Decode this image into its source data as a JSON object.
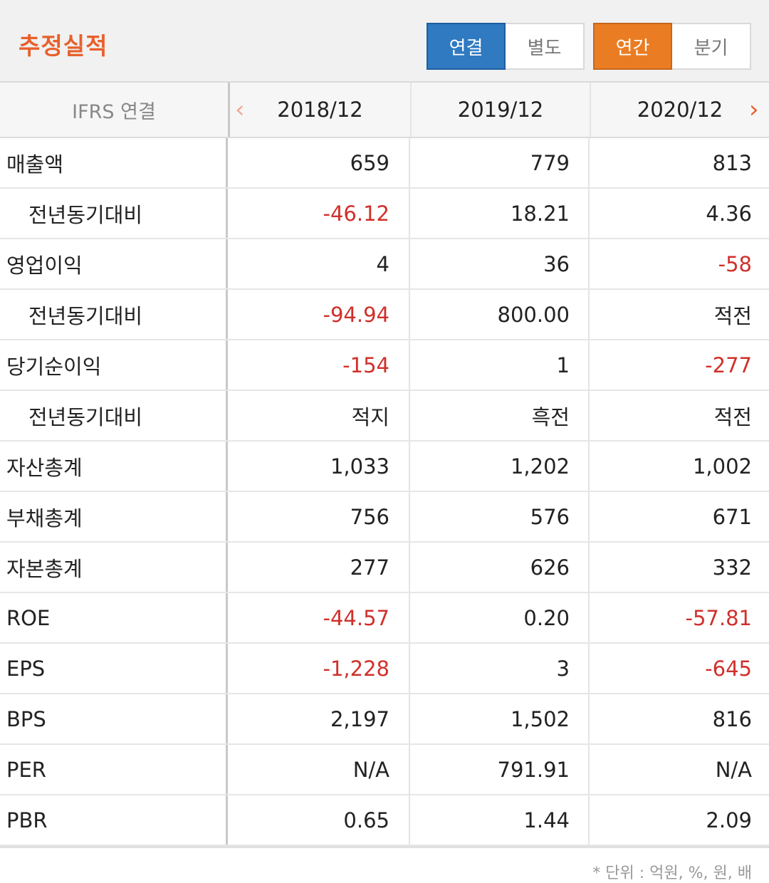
{
  "header": {
    "title": "추정실적",
    "consolidation_toggle": [
      "연결",
      "별도"
    ],
    "period_toggle": [
      "연간",
      "분기"
    ],
    "colors": {
      "title": "#e8602c",
      "blue_active": "#2f7ac1",
      "orange_active": "#ea7d23",
      "negative": "#d0302b"
    }
  },
  "table": {
    "corner_label": "IFRS 연결",
    "years": [
      "2018/12",
      "2019/12",
      "2020/12"
    ],
    "prev_icon": "chevron-left-icon",
    "next_icon": "chevron-right-icon",
    "rows": [
      {
        "label": "매출액",
        "sub": false,
        "values": [
          "659",
          "779",
          "813"
        ],
        "negative": [
          false,
          false,
          false
        ]
      },
      {
        "label": "전년동기대비",
        "sub": true,
        "values": [
          "-46.12",
          "18.21",
          "4.36"
        ],
        "negative": [
          true,
          false,
          false
        ]
      },
      {
        "label": "영업이익",
        "sub": false,
        "values": [
          "4",
          "36",
          "-58"
        ],
        "negative": [
          false,
          false,
          true
        ]
      },
      {
        "label": "전년동기대비",
        "sub": true,
        "values": [
          "-94.94",
          "800.00",
          "적전"
        ],
        "negative": [
          true,
          false,
          false
        ]
      },
      {
        "label": "당기순이익",
        "sub": false,
        "values": [
          "-154",
          "1",
          "-277"
        ],
        "negative": [
          true,
          false,
          true
        ]
      },
      {
        "label": "전년동기대비",
        "sub": true,
        "values": [
          "적지",
          "흑전",
          "적전"
        ],
        "negative": [
          false,
          false,
          false
        ]
      },
      {
        "label": "자산총계",
        "sub": false,
        "values": [
          "1,033",
          "1,202",
          "1,002"
        ],
        "negative": [
          false,
          false,
          false
        ]
      },
      {
        "label": "부채총계",
        "sub": false,
        "values": [
          "756",
          "576",
          "671"
        ],
        "negative": [
          false,
          false,
          false
        ]
      },
      {
        "label": "자본총계",
        "sub": false,
        "values": [
          "277",
          "626",
          "332"
        ],
        "negative": [
          false,
          false,
          false
        ]
      },
      {
        "label": "ROE",
        "sub": false,
        "values": [
          "-44.57",
          "0.20",
          "-57.81"
        ],
        "negative": [
          true,
          false,
          true
        ]
      },
      {
        "label": "EPS",
        "sub": false,
        "values": [
          "-1,228",
          "3",
          "-645"
        ],
        "negative": [
          true,
          false,
          true
        ]
      },
      {
        "label": "BPS",
        "sub": false,
        "values": [
          "2,197",
          "1,502",
          "816"
        ],
        "negative": [
          false,
          false,
          false
        ]
      },
      {
        "label": "PER",
        "sub": false,
        "values": [
          "N/A",
          "791.91",
          "N/A"
        ],
        "negative": [
          false,
          false,
          false
        ]
      },
      {
        "label": "PBR",
        "sub": false,
        "values": [
          "0.65",
          "1.44",
          "2.09"
        ],
        "negative": [
          false,
          false,
          false
        ]
      }
    ]
  },
  "footnote": "* 단위 : 억원, %, 원, 배"
}
